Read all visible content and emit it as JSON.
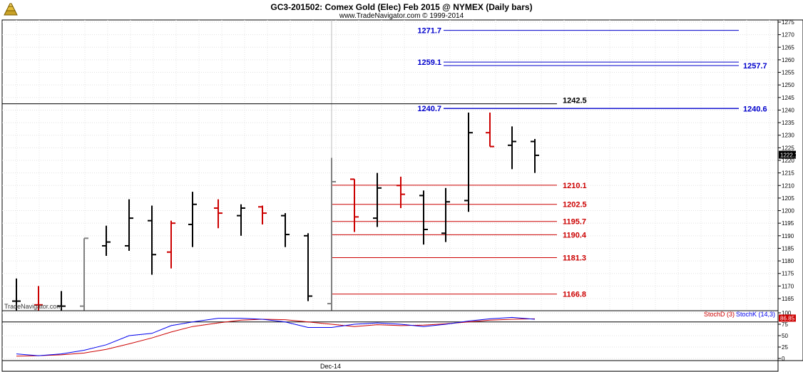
{
  "header": {
    "title": "GC3-201502:  Comex Gold (Elec) Feb 2015 @ NYMEX  (Daily bars)",
    "subtitle": "www.TradeNavigator.com © 1999-2014",
    "watermark": "TradeNavigator.com",
    "logo_icon": "gold-bars-icon"
  },
  "chart_data": [
    {
      "type": "ohlc",
      "ylim": [
        1160,
        1277
      ],
      "y_ticks": [
        1165,
        1170,
        1175,
        1180,
        1185,
        1190,
        1195,
        1200,
        1205,
        1210,
        1215,
        1220,
        1225,
        1230,
        1235,
        1240,
        1245,
        1250,
        1255,
        1260,
        1265,
        1270,
        1275
      ],
      "x_tick_label": "Dec-14",
      "last_price_label": "1222.1",
      "colors": {
        "up": "#000000",
        "down": "#cc0000",
        "gray": "#808080",
        "blue": "#0000cc",
        "red": "#cc0000"
      },
      "bars": [
        {
          "o": 1164.0,
          "h": 1173.0,
          "l": 1160.0,
          "c": 1164.0,
          "color": "black"
        },
        {
          "o": 1162.5,
          "h": 1170.0,
          "l": 1160.0,
          "c": 1162.5,
          "color": "red"
        },
        {
          "o": 1162.0,
          "h": 1168.0,
          "l": 1160.0,
          "c": 1162.0,
          "color": "black"
        },
        {
          "o": 1162.0,
          "h": 1189.0,
          "l": 1160.0,
          "c": 1189.0,
          "color": "gray"
        },
        {
          "o": 1186.0,
          "h": 1194.0,
          "l": 1182.0,
          "c": 1187.5,
          "color": "black"
        },
        {
          "o": 1186.0,
          "h": 1204.5,
          "l": 1184.0,
          "c": 1197.0,
          "color": "black"
        },
        {
          "o": 1196.0,
          "h": 1202.0,
          "l": 1174.5,
          "c": 1182.5,
          "color": "black"
        },
        {
          "o": 1183.5,
          "h": 1196.0,
          "l": 1177.0,
          "c": 1195.0,
          "color": "red"
        },
        {
          "o": 1194.5,
          "h": 1207.5,
          "l": 1185.5,
          "c": 1202.5,
          "color": "black"
        },
        {
          "o": 1201.0,
          "h": 1204.5,
          "l": 1193.0,
          "c": 1199.0,
          "color": "red"
        },
        {
          "o": 1198.0,
          "h": 1202.5,
          "l": 1190.0,
          "c": 1201.0,
          "color": "black"
        },
        {
          "o": 1201.5,
          "h": 1202.0,
          "l": 1194.5,
          "c": 1199.0,
          "color": "red"
        },
        {
          "o": 1198.0,
          "h": 1199.0,
          "l": 1185.5,
          "c": 1190.5,
          "color": "black"
        },
        {
          "o": 1190.0,
          "h": 1191.0,
          "l": 1164.0,
          "c": 1166.0,
          "color": "black"
        },
        {
          "o": 1163.0,
          "h": 1221.0,
          "l": 1160.0,
          "c": 1211.5,
          "color": "gray"
        },
        {
          "o": 1212.5,
          "h": 1212.5,
          "l": 1191.5,
          "c": 1197.5,
          "color": "red"
        },
        {
          "o": 1197.0,
          "h": 1215.0,
          "l": 1193.5,
          "c": 1209.0,
          "color": "black"
        },
        {
          "o": 1210.0,
          "h": 1213.5,
          "l": 1201.0,
          "c": 1206.5,
          "color": "red"
        },
        {
          "o": 1206.0,
          "h": 1208.0,
          "l": 1186.5,
          "c": 1192.5,
          "color": "black"
        },
        {
          "o": 1191.0,
          "h": 1209.0,
          "l": 1187.5,
          "c": 1203.5,
          "color": "black"
        },
        {
          "o": 1204.0,
          "h": 1239.0,
          "l": 1199.5,
          "c": 1231.0,
          "color": "black"
        },
        {
          "o": 1231.0,
          "h": 1239.0,
          "l": 1225.5,
          "c": 1225.5,
          "color": "red"
        },
        {
          "o": 1226.0,
          "h": 1233.5,
          "l": 1216.5,
          "c": 1227.5,
          "color": "black"
        },
        {
          "o": 1227.5,
          "h": 1228.5,
          "l": 1215.0,
          "c": 1222.0,
          "color": "black"
        }
      ],
      "levels": [
        {
          "value": 1271.7,
          "label": "1271.7",
          "color": "blue",
          "label_side": "left"
        },
        {
          "value": 1259.1,
          "label": "1259.1",
          "color": "blue",
          "label_side": "left"
        },
        {
          "value": 1257.7,
          "label": "1257.7",
          "color": "blue",
          "label_side": "right"
        },
        {
          "value": 1240.7,
          "label": "1240.7",
          "color": "blue",
          "label_side": "left"
        },
        {
          "value": 1240.6,
          "label": "1240.6",
          "color": "blue",
          "label_side": "right"
        },
        {
          "value": 1242.5,
          "label": "1242.5",
          "color": "black",
          "label_side": "right"
        },
        {
          "value": 1210.1,
          "label": "1210.1",
          "color": "red",
          "label_side": "right"
        },
        {
          "value": 1202.5,
          "label": "1202.5",
          "color": "red",
          "label_side": "right"
        },
        {
          "value": 1195.7,
          "label": "1195.7",
          "color": "red",
          "label_side": "right"
        },
        {
          "value": 1190.4,
          "label": "1190.4",
          "color": "red",
          "label_side": "right"
        },
        {
          "value": 1181.3,
          "label": "1181.3",
          "color": "red",
          "label_side": "right"
        },
        {
          "value": 1166.8,
          "label": "1166.8",
          "color": "red",
          "label_side": "right"
        }
      ]
    },
    {
      "type": "line",
      "ylim": [
        0,
        100
      ],
      "y_ticks": [
        0,
        25,
        50,
        75,
        100
      ],
      "reference_level": 80,
      "last_value_label": "86.85",
      "series": [
        {
          "name": "StochD (3)",
          "color": "#cc0000",
          "values": [
            5,
            6,
            8,
            12,
            20,
            32,
            45,
            58,
            70,
            78,
            84,
            86,
            85,
            80,
            75,
            70,
            74,
            72,
            73,
            76,
            80,
            84,
            86,
            87
          ]
        },
        {
          "name": "StochK (14,3)",
          "color": "#0000ee",
          "values": [
            10,
            6,
            10,
            18,
            30,
            50,
            55,
            72,
            80,
            88,
            88,
            86,
            80,
            68,
            68,
            75,
            78,
            75,
            70,
            75,
            82,
            87,
            90,
            86
          ]
        }
      ]
    }
  ]
}
